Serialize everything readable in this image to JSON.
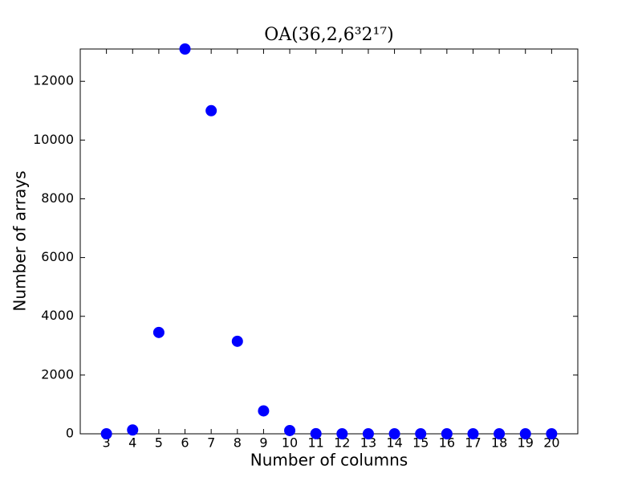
{
  "chart_data": {
    "type": "scatter",
    "title": "OA(36,2,6³2¹⁷)",
    "x_label": "Number of columns",
    "y_label": "Number of arrays",
    "x": [
      3,
      4,
      5,
      6,
      7,
      8,
      9,
      10,
      11,
      12,
      13,
      14,
      15,
      16,
      17,
      18,
      19,
      20
    ],
    "values": [
      0,
      130,
      3450,
      13100,
      11000,
      3150,
      780,
      110,
      5,
      0,
      0,
      0,
      0,
      0,
      0,
      0,
      0,
      0
    ],
    "color": "#0000ff",
    "xlim": [
      2,
      21
    ],
    "ylim": [
      0,
      13100
    ],
    "xticks": [
      3,
      4,
      5,
      6,
      7,
      8,
      9,
      10,
      11,
      12,
      13,
      14,
      15,
      16,
      17,
      18,
      19,
      20
    ],
    "yticks": [
      0,
      2000,
      4000,
      6000,
      8000,
      10000,
      12000
    ]
  }
}
